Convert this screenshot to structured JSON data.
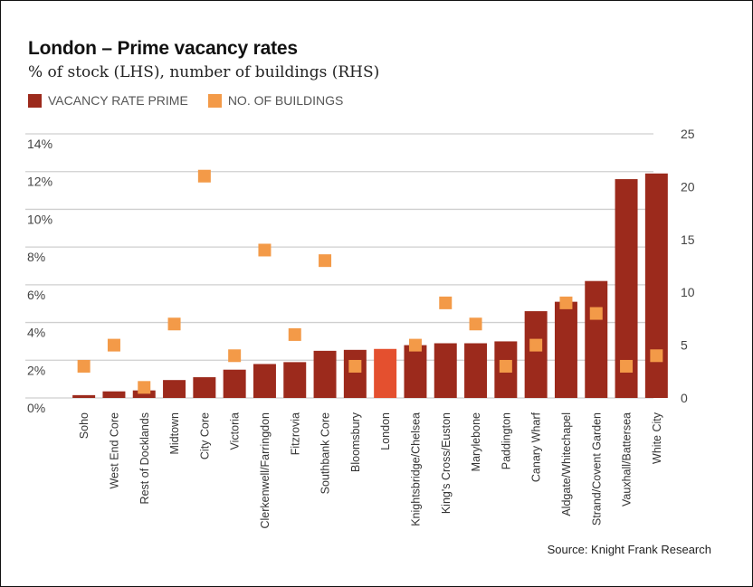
{
  "chart_data": {
    "type": "bar",
    "title": "London – Prime vacancy rates",
    "subtitle": "% of stock (LHS), number of buildings (RHS)",
    "xlabel": "",
    "ylabel": "",
    "legend": {
      "placement": "top-left",
      "items": [
        {
          "name": "VACANCY RATE PRIME",
          "color": "#9c2a1c",
          "marker": "square"
        },
        {
          "name": "NO. OF BUILDINGS",
          "color": "#f39a48",
          "marker": "square"
        }
      ]
    },
    "grid": true,
    "categories": [
      "Soho",
      "West End Core",
      "Rest of Docklands",
      "Midtown",
      "City Core",
      "Victoria",
      "Clerkenwell/Farringdon",
      "Fitzrovia",
      "Southbank Core",
      "Bloomsbury",
      "London",
      "Knightsbridge/Chelsea",
      "King's Cross/Euston",
      "Marylebone",
      "Paddington",
      "Canary Wharf",
      "Aldgate/Whitechapel",
      "Strand/Covent Garden",
      "Vauxhall/Battersea",
      "White City"
    ],
    "highlight_category": "London",
    "series": [
      {
        "name": "VACANCY RATE PRIME",
        "type": "bar",
        "axis": "left",
        "color": "#9c2a1c",
        "highlight_color": "#e4502f",
        "unit": "%",
        "values": [
          0.15,
          0.35,
          0.4,
          0.95,
          1.1,
          1.5,
          1.8,
          1.9,
          2.5,
          2.55,
          2.6,
          2.8,
          2.9,
          2.9,
          3.0,
          4.6,
          5.1,
          6.2,
          11.6,
          11.9
        ]
      },
      {
        "name": "NO. OF BUILDINGS",
        "type": "scatter",
        "axis": "right",
        "color": "#f39a48",
        "values": [
          3,
          5,
          1,
          7,
          21,
          4,
          14,
          6,
          13,
          3,
          null,
          5,
          9,
          7,
          3,
          5,
          9,
          8,
          3,
          4
        ]
      }
    ],
    "y_left": {
      "range": [
        0,
        14
      ],
      "ticks": [
        0,
        2,
        4,
        6,
        8,
        10,
        12,
        14
      ],
      "tick_labels": [
        "0%",
        "2%",
        "4%",
        "6%",
        "8%",
        "10%",
        "12%",
        "14%"
      ]
    },
    "y_right": {
      "range": [
        0,
        25
      ],
      "ticks": [
        0,
        5,
        10,
        15,
        20,
        25
      ],
      "tick_labels": [
        "0",
        "5",
        "10",
        "15",
        "20",
        "25"
      ]
    },
    "source": "Source: Knight Frank Research"
  }
}
